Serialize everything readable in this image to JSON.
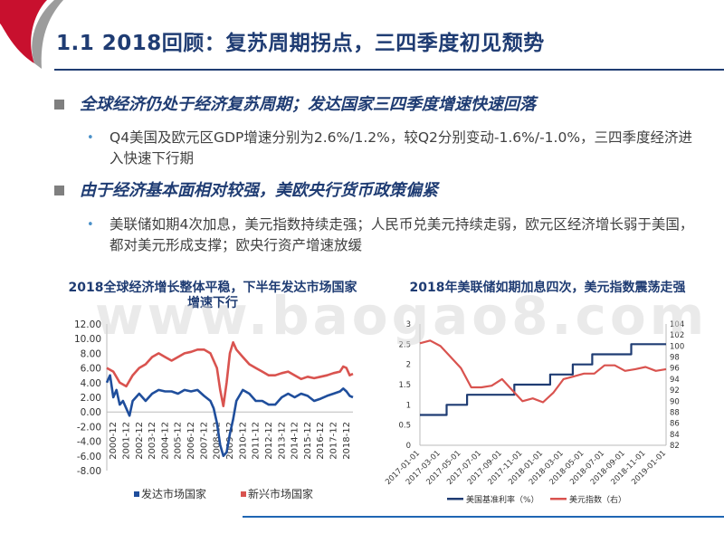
{
  "slide": {
    "title": "1.1 2018回顾：复苏周期拐点，三四季度初见颓势",
    "watermark": "www.baogao8.com"
  },
  "bullets": [
    {
      "heading": "全球经济仍处于经济复苏周期；发达国家三四季度增速快速回落",
      "detail": "Q4美国及欧元区GDP增速分别为2.6%/1.2%，较Q2分别变动-1.6%/-1.0%，三四季度经济进入快速下行期"
    },
    {
      "heading": "由于经济基本面相对较强，美欧央行货币政策偏紧",
      "detail": "美联储如期4次加息，美元指数持续走强；人民币兑美元持续走弱，欧元区经济增长弱于美国，都对美元形成支撑；欧央行资产增速放缓"
    }
  ],
  "colors": {
    "accent_red": "#c8102e",
    "navy": "#1f3c73",
    "series_blue": "#1f4e9c",
    "series_red": "#d9534f"
  },
  "chart_data": [
    {
      "type": "line",
      "title": "2018全球经济增长整体平稳，下半年发达市场国家增速下行",
      "ylim": [
        -8,
        12
      ],
      "yticks": [
        "12.00",
        "10.00",
        "8.00",
        "6.00",
        "4.00",
        "2.00",
        "0.00",
        "-2.00",
        "-4.00",
        "-6.00",
        "-8.00"
      ],
      "xticks": [
        "2000-12",
        "2001-12",
        "2002-12",
        "2003-12",
        "2004-12",
        "2005-12",
        "2006-12",
        "2007-12",
        "2008-12",
        "2009-12",
        "2010-12",
        "2011-12",
        "2012-12",
        "2013-12",
        "2014-12",
        "2015-12",
        "2016-12",
        "2017-12",
        "2018-12"
      ],
      "series": [
        {
          "name": "发达市场国家",
          "color": "#1f4e9c",
          "x": [
            2000.0,
            2000.25,
            2000.5,
            2000.75,
            2001.0,
            2001.25,
            2001.5,
            2001.75,
            2002.0,
            2002.5,
            2003.0,
            2003.5,
            2004.0,
            2004.5,
            2005.0,
            2005.5,
            2006.0,
            2006.5,
            2007.0,
            2007.5,
            2008.0,
            2008.25,
            2008.5,
            2008.75,
            2009.0,
            2009.25,
            2009.5,
            2009.75,
            2010.0,
            2010.5,
            2011.0,
            2011.5,
            2012.0,
            2012.5,
            2013.0,
            2013.5,
            2014.0,
            2014.5,
            2015.0,
            2015.5,
            2016.0,
            2016.5,
            2017.0,
            2017.5,
            2018.0,
            2018.25,
            2018.5,
            2018.75,
            2019.0
          ],
          "values": [
            4.0,
            5.0,
            2.0,
            3.0,
            1.0,
            1.5,
            0.5,
            -0.5,
            1.5,
            2.5,
            1.5,
            2.5,
            3.0,
            2.8,
            2.8,
            2.5,
            3.0,
            2.8,
            3.0,
            2.2,
            1.5,
            0.5,
            -1.5,
            -4.5,
            -6.0,
            -5.5,
            -3.0,
            -1.0,
            1.5,
            3.0,
            2.5,
            1.5,
            1.5,
            1.0,
            1.0,
            2.0,
            2.5,
            2.0,
            2.5,
            2.2,
            1.5,
            1.8,
            2.2,
            2.5,
            2.8,
            3.2,
            2.8,
            2.2,
            2.0
          ]
        },
        {
          "name": "新兴市场国家",
          "color": "#d9534f",
          "x": [
            2000.0,
            2000.5,
            2001.0,
            2001.5,
            2002.0,
            2002.5,
            2003.0,
            2003.5,
            2004.0,
            2004.5,
            2005.0,
            2005.5,
            2006.0,
            2006.5,
            2007.0,
            2007.5,
            2008.0,
            2008.5,
            2008.75,
            2009.0,
            2009.25,
            2009.5,
            2009.75,
            2010.0,
            2010.5,
            2011.0,
            2011.5,
            2012.0,
            2012.5,
            2013.0,
            2013.5,
            2014.0,
            2014.5,
            2015.0,
            2015.5,
            2016.0,
            2016.5,
            2017.0,
            2017.5,
            2018.0,
            2018.25,
            2018.5,
            2018.75,
            2019.0
          ],
          "values": [
            6.0,
            5.5,
            4.0,
            3.5,
            5.0,
            6.0,
            6.5,
            7.5,
            8.0,
            7.5,
            7.0,
            7.5,
            8.0,
            8.2,
            8.5,
            8.5,
            8.0,
            6.0,
            3.0,
            0.8,
            4.0,
            8.0,
            9.5,
            8.5,
            7.5,
            6.5,
            6.0,
            5.5,
            5.0,
            5.0,
            5.3,
            5.5,
            5.0,
            4.5,
            4.8,
            4.6,
            4.8,
            5.0,
            5.3,
            5.5,
            6.2,
            6.0,
            5.0,
            5.2
          ]
        }
      ]
    },
    {
      "type": "line",
      "title": "2018年美联储如期加息四次，美元指数震荡走强",
      "ylim_left": [
        0,
        3
      ],
      "ylim_right": [
        82,
        104
      ],
      "yticks_left": [
        "3",
        "2.5",
        "2",
        "1.5",
        "1",
        "0.5",
        "0"
      ],
      "yticks_right": [
        "104",
        "102",
        "100",
        "98",
        "96",
        "94",
        "92",
        "90",
        "88",
        "86",
        "84",
        "82"
      ],
      "xticks": [
        "2017-01-01",
        "2017-03-01",
        "2017-05-01",
        "2017-07-01",
        "2017-09-01",
        "2017-11-01",
        "2018-01-01",
        "2018-03-01",
        "2018-05-01",
        "2018-07-01",
        "2018-09-01",
        "2018-11-01",
        "2019-01-01"
      ],
      "series": [
        {
          "name": "美国基准利率（%）",
          "axis": "left",
          "color": "#1f3c73",
          "x": [
            0,
            1.2,
            1.2,
            2.6,
            2.6,
            4.6,
            4.6,
            7.6,
            7.6,
            9.2,
            9.2,
            11.1,
            11.1,
            12.7,
            12.7,
            14.9,
            14.9,
            16.8,
            16.8,
            18.5,
            18.5,
            20.6,
            20.6,
            22.5,
            22.5,
            24
          ],
          "values": [
            0.75,
            0.75,
            0.75,
            0.75,
            1.0,
            1.0,
            1.25,
            1.25,
            1.25,
            1.25,
            1.5,
            1.5,
            1.5,
            1.5,
            1.75,
            1.75,
            2.0,
            2.0,
            2.25,
            2.25,
            2.25,
            2.25,
            2.5,
            2.5,
            2.5,
            2.5
          ]
        },
        {
          "name": "美元指数（右）",
          "axis": "right",
          "color": "#d9534f",
          "x": [
            0,
            1,
            2,
            3,
            4,
            5,
            6,
            7,
            8,
            9,
            10,
            11,
            12,
            13,
            14,
            15,
            16,
            17,
            18,
            19,
            20,
            21,
            22,
            23,
            24
          ],
          "values": [
            100.5,
            101,
            100,
            98,
            96,
            92.5,
            92.5,
            92.8,
            94,
            92,
            90,
            90.5,
            89.8,
            91.5,
            94,
            94.5,
            95,
            95,
            96.5,
            96.5,
            95.5,
            95.8,
            96.2,
            95.5,
            95.8
          ]
        }
      ]
    }
  ]
}
